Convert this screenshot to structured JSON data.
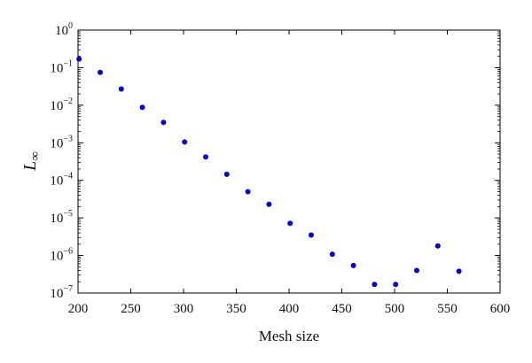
{
  "chart_data": {
    "type": "scatter",
    "xlabel": "Mesh size",
    "ylabel_main": "L",
    "ylabel_sub": "∞",
    "xlim": [
      200,
      600
    ],
    "ylim": [
      1e-07,
      1
    ],
    "yscale": "log",
    "grid": false,
    "marker_color": "#0000dd",
    "x_ticks": [
      200,
      250,
      300,
      350,
      400,
      450,
      500,
      550,
      600
    ],
    "y_ticks": [
      {
        "value": 1.0,
        "base": "10",
        "exp": "0"
      },
      {
        "value": 0.1,
        "base": "10",
        "exp": "−1"
      },
      {
        "value": 0.01,
        "base": "10",
        "exp": "−2"
      },
      {
        "value": 0.001,
        "base": "10",
        "exp": "−3"
      },
      {
        "value": 0.0001,
        "base": "10",
        "exp": "−4"
      },
      {
        "value": 1e-05,
        "base": "10",
        "exp": "−5"
      },
      {
        "value": 1e-06,
        "base": "10",
        "exp": "−6"
      },
      {
        "value": 1e-07,
        "base": "10",
        "exp": "−7"
      }
    ],
    "series": [
      {
        "x": [
          201,
          221,
          241,
          261,
          281,
          301,
          321,
          341,
          361,
          381,
          401,
          421,
          441,
          461,
          481,
          501,
          521,
          541,
          561
        ],
        "y": [
          0.17,
          0.075,
          0.027,
          0.0088,
          0.0035,
          0.00105,
          0.00042,
          0.000145,
          5e-05,
          2.3e-05,
          7.2e-06,
          3.5e-06,
          1.08e-06,
          5.4e-07,
          1.7e-07,
          1.7e-07,
          4e-07,
          1.8e-06,
          3.8e-07
        ]
      }
    ]
  }
}
